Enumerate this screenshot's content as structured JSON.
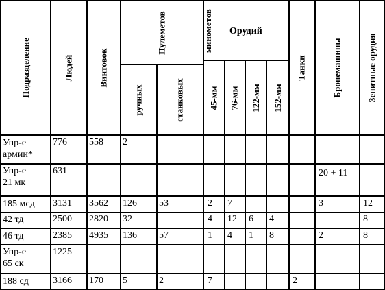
{
  "headers": {
    "unit": "Подразделение",
    "people": "Людей",
    "rifles": "Винтовок",
    "machine_guns": "Пулеметов",
    "mg_hand": "ручных",
    "mg_heavy": "станковых",
    "mortars": "минометов",
    "guns": "Орудий",
    "gun_45": "45-мм",
    "gun_76": "76-мм",
    "gun_122": "122-мм",
    "gun_152": "152-мм",
    "tanks": "Танки",
    "armored": "Бронемашины",
    "aa_guns": "Зенитные орудия"
  },
  "rows": [
    {
      "unit_l1": "Упр-е",
      "unit_l2": "армии*",
      "people": "776",
      "rifles": "558",
      "mg_hand": "2",
      "mg_heavy": "",
      "mortars": "",
      "gun_45": "",
      "gun_76": "",
      "gun_122": "",
      "gun_152": "",
      "tanks": "",
      "armored": "",
      "aa_guns": ""
    },
    {
      "unit_l1": "Упр-е",
      "unit_l2": "21 мк",
      "people": "631",
      "rifles": "",
      "mg_hand": "",
      "mg_heavy": "",
      "mortars": "",
      "gun_45": "",
      "gun_76": "",
      "gun_122": "",
      "gun_152": "",
      "tanks": "",
      "armored": "20 + 11",
      "aa_guns": ""
    },
    {
      "unit_l1": "185 мсд",
      "unit_l2": "",
      "people": "3131",
      "rifles": "3562",
      "mg_hand": "126",
      "mg_heavy": "53",
      "mortars": "",
      "gun_45": "2",
      "gun_76": "7",
      "gun_122": "",
      "gun_152": "",
      "tanks": "",
      "armored": "3",
      "aa_guns": "12"
    },
    {
      "unit_l1": "42 тд",
      "unit_l2": "",
      "people": "2500",
      "rifles": "2820",
      "mg_hand": "32",
      "mg_heavy": "",
      "mortars": "",
      "gun_45": "4",
      "gun_76": "12",
      "gun_122": "6",
      "gun_152": "4",
      "tanks": "",
      "armored": "",
      "aa_guns": "8"
    },
    {
      "unit_l1": "46 тд",
      "unit_l2": "",
      "people": "2385",
      "rifles": "4935",
      "mg_hand": "136",
      "mg_heavy": "57",
      "mortars": "",
      "gun_45": "1",
      "gun_76": "4",
      "gun_122": "1",
      "gun_152": "8",
      "tanks": "",
      "armored": "2",
      "aa_guns": "8"
    },
    {
      "unit_l1": "Упр-е",
      "unit_l2": "65 ск",
      "people": "1225",
      "rifles": "",
      "mg_hand": "",
      "mg_heavy": "",
      "mortars": "",
      "gun_45": "",
      "gun_76": "",
      "gun_122": "",
      "gun_152": "",
      "tanks": "",
      "armored": "",
      "aa_guns": ""
    },
    {
      "unit_l1": "188 сд",
      "unit_l2": "",
      "people": "3166",
      "rifles": "170",
      "mg_hand": "5",
      "mg_heavy": "2",
      "mortars": "",
      "gun_45": "7",
      "gun_76": "",
      "gun_122": "",
      "gun_152": "",
      "tanks": "2",
      "armored": "",
      "aa_guns": ""
    }
  ]
}
